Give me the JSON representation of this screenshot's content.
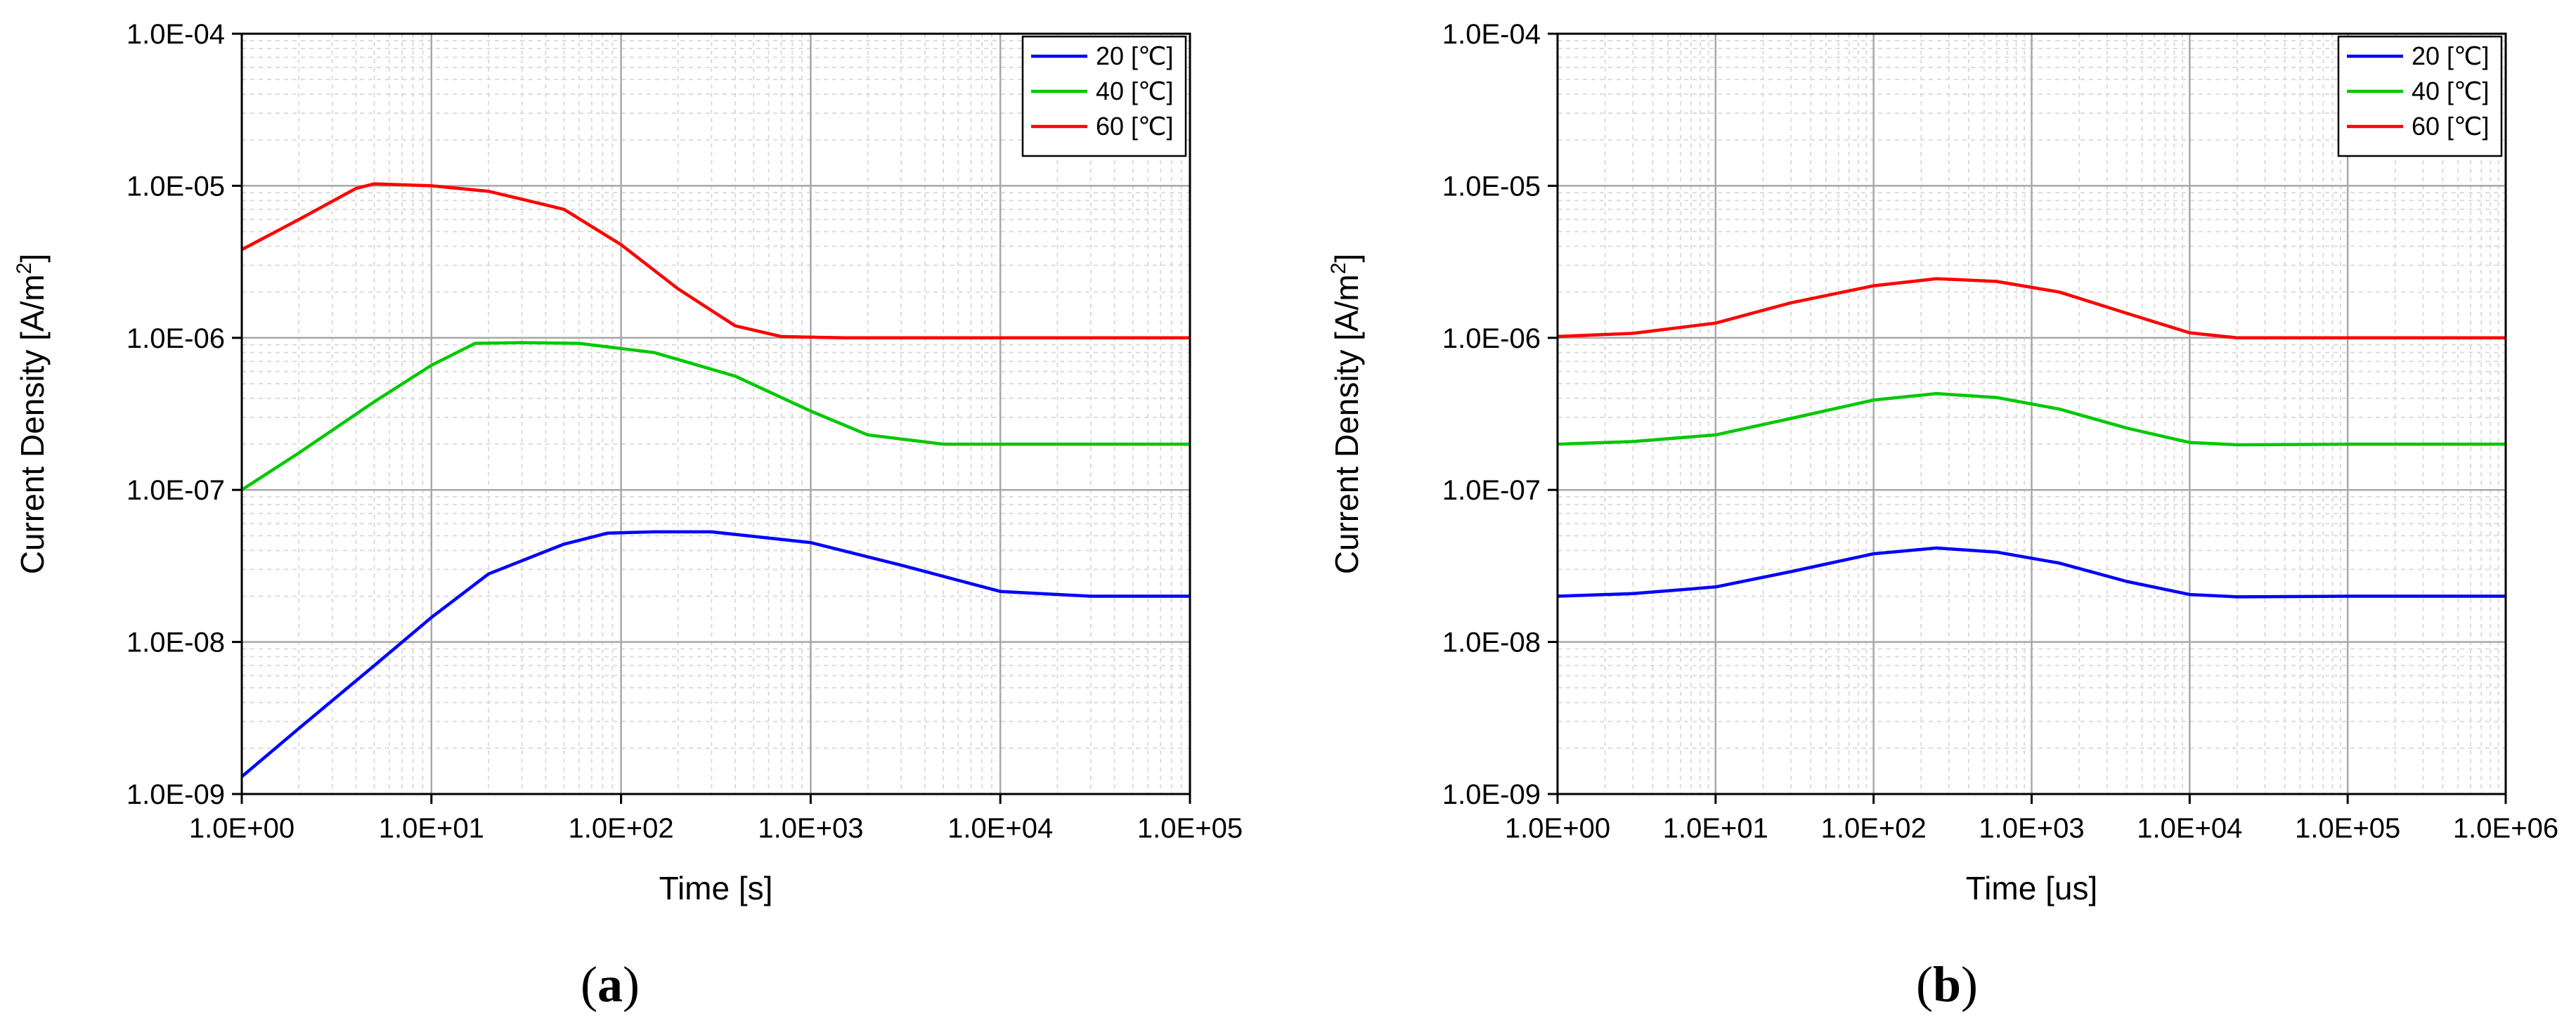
{
  "chart_data": [
    {
      "type": "line",
      "panel_label": "(a)",
      "panel_letter": "a",
      "xlabel": "Time [s]",
      "ylabel": "Current Density [A/m",
      "ylabel_sup": "2",
      "ylabel_end": "]",
      "x_scale": "log",
      "y_scale": "log",
      "xlim": [
        1,
        100000
      ],
      "ylim": [
        1e-09,
        0.0001
      ],
      "xticks": [
        1,
        10,
        100,
        1000,
        10000,
        100000
      ],
      "xtick_labels": [
        "1.0E+00",
        "1.0E+01",
        "1.0E+02",
        "1.0E+03",
        "1.0E+04",
        "1.0E+05"
      ],
      "yticks": [
        1e-09,
        1e-08,
        1e-07,
        1e-06,
        1e-05,
        0.0001
      ],
      "ytick_labels": [
        "1.0E-09",
        "1.0E-08",
        "1.0E-07",
        "1.0E-06",
        "1.0E-05",
        "1.0E-04"
      ],
      "grid": true,
      "legend_position": "top-right",
      "series": [
        {
          "name": "20 [℃]",
          "color": "#0000ff",
          "x": [
            1,
            2,
            5,
            10,
            20,
            50,
            85,
            150,
            300,
            1000,
            3000,
            10000,
            30000,
            100000
          ],
          "y": [
            1.3e-09,
            2.7e-09,
            7e-09,
            1.45e-08,
            2.8e-08,
            4.4e-08,
            5.2e-08,
            5.3e-08,
            5.3e-08,
            4.5e-08,
            3.2e-08,
            2.15e-08,
            2e-08,
            2e-08
          ]
        },
        {
          "name": "40 [℃]",
          "color": "#00c800",
          "x": [
            1,
            2,
            5,
            10,
            17,
            30,
            60,
            150,
            400,
            1000,
            2000,
            5000,
            20000,
            100000
          ],
          "y": [
            1e-07,
            1.75e-07,
            3.8e-07,
            6.6e-07,
            9.2e-07,
            9.3e-07,
            9.2e-07,
            8e-07,
            5.6e-07,
            3.3e-07,
            2.3e-07,
            2e-07,
            2e-07,
            2e-07
          ]
        },
        {
          "name": "60 [℃]",
          "color": "#ff0000",
          "x": [
            1,
            2,
            4,
            5,
            10,
            20,
            50,
            100,
            200,
            400,
            700,
            1500,
            5000,
            100000
          ],
          "y": [
            3.8e-06,
            6e-06,
            9.6e-06,
            1.03e-05,
            1e-05,
            9.2e-06,
            7e-06,
            4.1e-06,
            2.1e-06,
            1.2e-06,
            1.02e-06,
            1e-06,
            1e-06,
            1e-06
          ]
        }
      ]
    },
    {
      "type": "line",
      "panel_label": "(b)",
      "panel_letter": "b",
      "xlabel": "Time [us]",
      "ylabel": "Current Density [A/m",
      "ylabel_sup": "2",
      "ylabel_end": "]",
      "x_scale": "log",
      "y_scale": "log",
      "xlim": [
        1,
        1000000
      ],
      "ylim": [
        1e-09,
        0.0001
      ],
      "xticks": [
        1,
        10,
        100,
        1000,
        10000,
        100000,
        1000000
      ],
      "xtick_labels": [
        "1.0E+00",
        "1.0E+01",
        "1.0E+02",
        "1.0E+03",
        "1.0E+04",
        "1.0E+05",
        "1.0E+06"
      ],
      "yticks": [
        1e-09,
        1e-08,
        1e-07,
        1e-06,
        1e-05,
        0.0001
      ],
      "ytick_labels": [
        "1.0E-09",
        "1.0E-08",
        "1.0E-07",
        "1.0E-06",
        "1.0E-05",
        "1.0E-04"
      ],
      "grid": true,
      "legend_position": "top-right",
      "series": [
        {
          "name": "20 [℃]",
          "color": "#0000ff",
          "x": [
            1,
            3,
            10,
            30,
            100,
            250,
            600,
            1500,
            4000,
            10000,
            20000,
            100000,
            1000000
          ],
          "y": [
            2e-08,
            2.08e-08,
            2.3e-08,
            2.9e-08,
            3.8e-08,
            4.15e-08,
            3.9e-08,
            3.3e-08,
            2.5e-08,
            2.05e-08,
            1.98e-08,
            2e-08,
            2e-08
          ]
        },
        {
          "name": "40 [℃]",
          "color": "#00c800",
          "x": [
            1,
            3,
            10,
            30,
            100,
            250,
            600,
            1500,
            4000,
            10000,
            20000,
            100000,
            1000000
          ],
          "y": [
            2e-07,
            2.08e-07,
            2.3e-07,
            2.95e-07,
            3.9e-07,
            4.3e-07,
            4.05e-07,
            3.4e-07,
            2.55e-07,
            2.05e-07,
            1.98e-07,
            2e-07,
            2e-07
          ]
        },
        {
          "name": "60 [℃]",
          "color": "#ff0000",
          "x": [
            1,
            3,
            10,
            30,
            100,
            250,
            600,
            1500,
            4000,
            10000,
            20000,
            100000,
            1000000
          ],
          "y": [
            1.02e-06,
            1.07e-06,
            1.25e-06,
            1.7e-06,
            2.2e-06,
            2.45e-06,
            2.35e-06,
            2e-06,
            1.45e-06,
            1.08e-06,
            1e-06,
            1e-06,
            1e-06
          ]
        }
      ]
    }
  ]
}
